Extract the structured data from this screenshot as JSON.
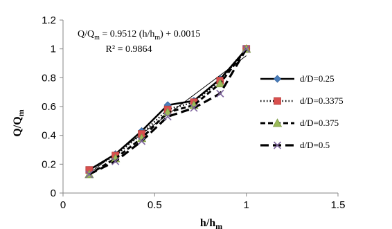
{
  "chart_data": {
    "type": "line",
    "xlabel": "h/h",
    "xlabel_sub": "m",
    "ylabel": "Q/Q",
    "ylabel_sub": "m",
    "xlim": [
      0,
      1.5
    ],
    "ylim": [
      0,
      1.2
    ],
    "xticks": [
      "0",
      "0.5",
      "1",
      "1.5"
    ],
    "yticks": [
      "0",
      "0.2",
      "0.4",
      "0.6",
      "0.8",
      "1",
      "1.2"
    ],
    "grid": false,
    "legend_position": "right",
    "annotation": {
      "equation_prefix": "Q/Q",
      "equation_sub1": "m",
      "equation_mid": " = 0.9512 (h/h",
      "equation_sub2": "m",
      "equation_suffix": ") + 0.0015",
      "r2": "R² = 0.9864"
    },
    "trendline": {
      "slope": 0.9512,
      "intercept": 0.0015,
      "x_range": [
        0.143,
        1.0
      ]
    },
    "series": [
      {
        "name": "d/D=0.25",
        "marker": "diamond",
        "marker_color": "#4a7ebb",
        "line_style": "solid",
        "x": [
          0.143,
          0.286,
          0.429,
          0.571,
          0.714,
          0.857,
          1.0
        ],
        "y": [
          0.16,
          0.27,
          0.43,
          0.61,
          0.64,
          0.79,
          1.0
        ]
      },
      {
        "name": "d/D=0.3375",
        "marker": "square",
        "marker_color": "#d9504e",
        "line_style": "dotted",
        "x": [
          0.143,
          0.286,
          0.429,
          0.571,
          0.714,
          0.857,
          1.0
        ],
        "y": [
          0.16,
          0.26,
          0.41,
          0.58,
          0.63,
          0.78,
          1.0
        ]
      },
      {
        "name": "d/D=0.375",
        "marker": "triangle",
        "marker_color": "#9bbb59",
        "line_style": "dashed",
        "x": [
          0.143,
          0.286,
          0.429,
          0.571,
          0.714,
          0.857,
          1.0
        ],
        "y": [
          0.13,
          0.24,
          0.38,
          0.56,
          0.61,
          0.76,
          1.0
        ]
      },
      {
        "name": "d/D=0.5",
        "marker": "x",
        "marker_color": "#7e649e",
        "line_style": "long-dash",
        "x": [
          0.143,
          0.286,
          0.429,
          0.571,
          0.714,
          0.857,
          1.0
        ],
        "y": [
          0.13,
          0.22,
          0.36,
          0.53,
          0.59,
          0.69,
          1.0
        ]
      }
    ]
  }
}
